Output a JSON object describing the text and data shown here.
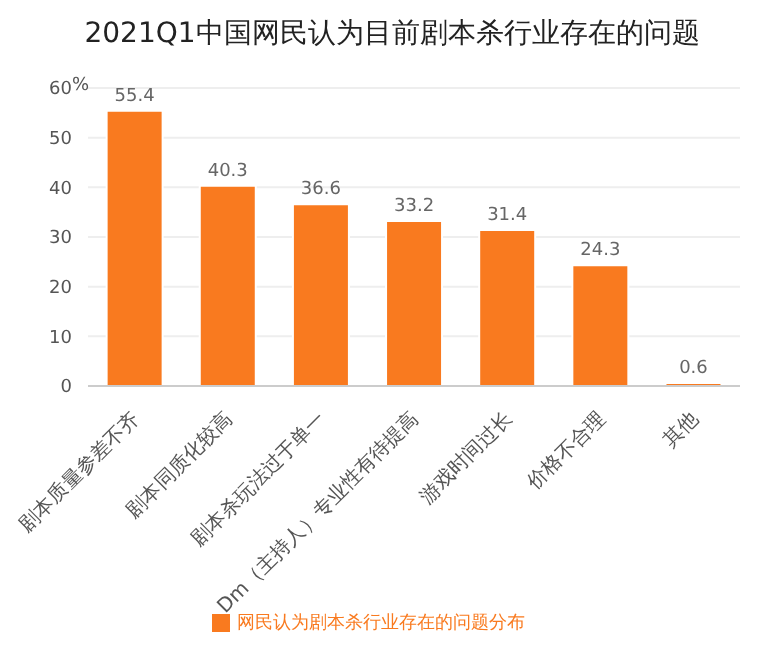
{
  "chart_data": {
    "type": "bar",
    "title": "2021Q1中国网民认为目前剧本杀行业存在的问题",
    "ylabel": "%",
    "categories": [
      "剧本质量参差不齐",
      "剧本同质化较高",
      "剧本杀玩法过于单一",
      "Dm（主持人）专业性有待提高",
      "游戏时间过长",
      "价格不合理",
      "其他"
    ],
    "series": [
      {
        "name": "网民认为剧本杀行业存在的问题分布",
        "color": "#f97a1f",
        "values": [
          55.4,
          40.3,
          36.6,
          33.2,
          31.4,
          24.3,
          0.6
        ]
      }
    ],
    "ylim": [
      0,
      60
    ],
    "yticks": [
      0,
      10,
      20,
      30,
      40,
      50,
      60
    ],
    "grid": "y",
    "legend": "bottom",
    "data_labels": true
  }
}
